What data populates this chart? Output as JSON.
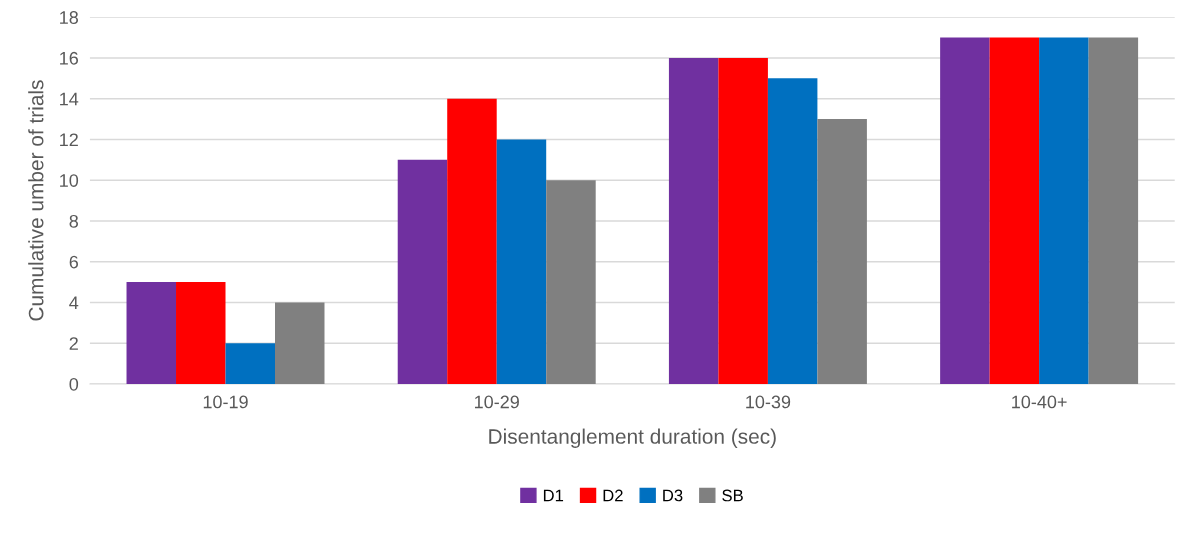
{
  "chart_data": {
    "type": "bar",
    "xlabel": "Disentanglement duration (sec)",
    "ylabel": "Cumulative umber of trials",
    "categories": [
      "10-19",
      "10-29",
      "10-39",
      "10-40+"
    ],
    "series": [
      {
        "name": "D1",
        "color": "#7030a0",
        "values": [
          5,
          11,
          16,
          17
        ]
      },
      {
        "name": "D2",
        "color": "#ff0000",
        "values": [
          5,
          14,
          16,
          17
        ]
      },
      {
        "name": "D3",
        "color": "#0070c0",
        "values": [
          2,
          12,
          15,
          17
        ]
      },
      {
        "name": "SB",
        "color": "#808080",
        "values": [
          4,
          10,
          13,
          17
        ]
      }
    ],
    "ylim": [
      0,
      18
    ],
    "yticks": [
      0,
      2,
      4,
      6,
      8,
      10,
      12,
      14,
      16,
      18
    ],
    "grid": "y",
    "legend": "bottom"
  }
}
